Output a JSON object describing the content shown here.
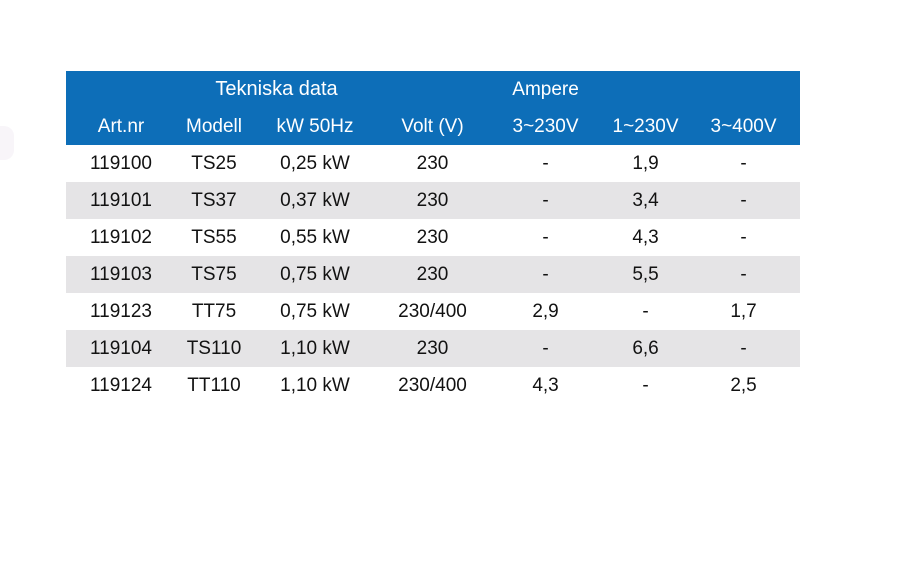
{
  "table": {
    "title": "Tekniska data",
    "group_header": "Ampere",
    "columns": [
      "Art.nr",
      "Modell",
      "kW 50Hz",
      "Volt (V)",
      "3~230V",
      "1~230V",
      "3~400V"
    ],
    "rows": [
      [
        "119100",
        "TS25",
        "0,25 kW",
        "230",
        "-",
        "1,9",
        "-"
      ],
      [
        "119101",
        "TS37",
        "0,37 kW",
        "230",
        "-",
        "3,4",
        "-"
      ],
      [
        "119102",
        "TS55",
        "0,55 kW",
        "230",
        "-",
        "4,3",
        "-"
      ],
      [
        "119103",
        "TS75",
        "0,75 kW",
        "230",
        "-",
        "5,5",
        "-"
      ],
      [
        "119123",
        "TT75",
        "0,75 kW",
        "230/400",
        "2,9",
        "-",
        "1,7"
      ],
      [
        "119104",
        "TS110",
        "1,10 kW",
        "230",
        "-",
        "6,6",
        "-"
      ],
      [
        "119124",
        "TT110",
        "1,10 kW",
        "230/400",
        "4,3",
        "-",
        "2,5"
      ]
    ],
    "colors": {
      "header_bg": "#0d6eb8",
      "header_text": "#ffffff",
      "row_alt_bg": "#e5e4e6",
      "row_bg": "#ffffff",
      "body_text": "#121212"
    }
  }
}
